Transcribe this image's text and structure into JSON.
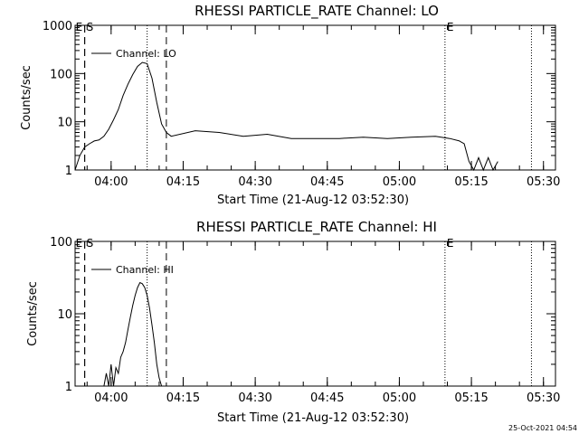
{
  "footer_timestamp": "25-Oct-2021 04:54",
  "colors": {
    "background": "#ffffff",
    "foreground": "#000000"
  },
  "chart_data": [
    {
      "type": "line",
      "title": "RHESSI PARTICLE_RATE Channel: LO",
      "xlabel": "Start Time (21-Aug-12 03:52:30)",
      "ylabel": "Counts/sec",
      "yscale": "log",
      "ylim": [
        1,
        1000
      ],
      "y_tick_labels": [
        "1",
        "10",
        "100",
        "1000"
      ],
      "y_tick_values": [
        1,
        10,
        100,
        1000
      ],
      "xlim_minutes": [
        0,
        100
      ],
      "x_tick_labels": [
        "04:00",
        "04:15",
        "04:30",
        "04:45",
        "05:00",
        "05:15",
        "05:30"
      ],
      "x_tick_minutes": [
        7.5,
        22.5,
        37.5,
        52.5,
        67.5,
        82.5,
        97.5
      ],
      "legend": "Channel: LO",
      "legend_position": "top-left",
      "markers": [
        {
          "label": "E",
          "minute": 2,
          "style": "dashed"
        },
        {
          "label": "S",
          "minute": 2,
          "style": "dashed"
        },
        {
          "label": "",
          "minute": 19,
          "style": "dashed"
        },
        {
          "label": "",
          "minute": 15,
          "style": "dotted"
        },
        {
          "label": "E",
          "minute": 77,
          "style": "dotted"
        },
        {
          "label": "",
          "minute": 95,
          "style": "dotted"
        }
      ],
      "series": [
        {
          "name": "Channel: LO",
          "x": [
            0,
            1,
            2,
            3,
            4,
            5,
            6,
            7,
            8,
            9,
            10,
            11,
            12,
            13,
            14,
            15,
            16,
            17,
            18,
            19,
            20,
            25,
            30,
            35,
            40,
            45,
            50,
            55,
            60,
            65,
            70,
            75,
            78,
            80,
            81,
            82,
            83,
            84,
            85,
            86,
            87,
            88
          ],
          "values": [
            1,
            2,
            3,
            3.5,
            4,
            4.2,
            5,
            7,
            11,
            18,
            35,
            60,
            95,
            140,
            170,
            160,
            80,
            25,
            9,
            6,
            5,
            6.5,
            6,
            5,
            5.5,
            4.5,
            4.5,
            4.5,
            4.8,
            4.5,
            4.8,
            5,
            4.5,
            4,
            3.5,
            1.5,
            1,
            1.8,
            1,
            1.8,
            1,
            1.5
          ]
        }
      ]
    },
    {
      "type": "line",
      "title": "RHESSI PARTICLE_RATE Channel: HI",
      "xlabel": "Start Time (21-Aug-12 03:52:30)",
      "ylabel": "Counts/sec",
      "yscale": "log",
      "ylim": [
        1,
        100
      ],
      "y_tick_labels": [
        "1",
        "10",
        "100"
      ],
      "y_tick_values": [
        1,
        10,
        100
      ],
      "xlim_minutes": [
        0,
        100
      ],
      "x_tick_labels": [
        "04:00",
        "04:15",
        "04:30",
        "04:45",
        "05:00",
        "05:15",
        "05:30"
      ],
      "x_tick_minutes": [
        7.5,
        22.5,
        37.5,
        52.5,
        67.5,
        82.5,
        97.5
      ],
      "legend": "Channel: HI",
      "legend_position": "top-left",
      "markers": [
        {
          "label": "E",
          "minute": 2,
          "style": "dashed"
        },
        {
          "label": "S",
          "minute": 2,
          "style": "dashed"
        },
        {
          "label": "",
          "minute": 19,
          "style": "dashed"
        },
        {
          "label": "",
          "minute": 15,
          "style": "dotted"
        },
        {
          "label": "E",
          "minute": 77,
          "style": "dotted"
        },
        {
          "label": "",
          "minute": 95,
          "style": "dotted"
        }
      ],
      "series": [
        {
          "name": "Channel: HI",
          "x": [
            6,
            6.5,
            7,
            7.5,
            8,
            8.5,
            9,
            9.5,
            10,
            10.5,
            11,
            11.5,
            12,
            12.5,
            13,
            13.5,
            14,
            14.5,
            15,
            15.5,
            16,
            16.5,
            17,
            17.5,
            18
          ],
          "values": [
            1,
            1.5,
            1,
            2,
            1,
            1.8,
            1.5,
            2.5,
            3,
            4,
            6,
            9,
            13,
            18,
            23,
            27,
            26,
            23,
            18,
            12,
            7,
            4,
            2,
            1.3,
            1
          ]
        }
      ]
    }
  ]
}
